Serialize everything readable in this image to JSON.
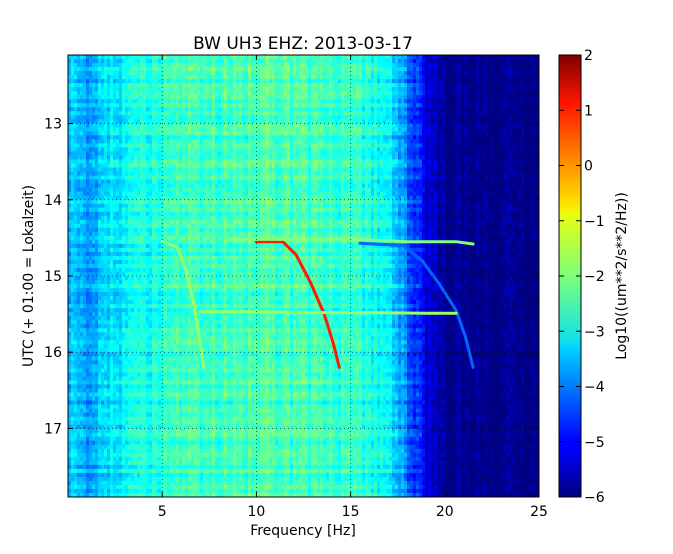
{
  "chart_data": {
    "type": "heatmap",
    "title": "BW UH3 EHZ: 2013-03-17",
    "xlabel": "Frequency [Hz]",
    "ylabel": "UTC (+ 01:00 = Lokalzeit)",
    "xlim": [
      0,
      25
    ],
    "ylim": [
      12.1,
      17.9
    ],
    "x_ticks": [
      5,
      10,
      15,
      20,
      25
    ],
    "y_ticks": [
      13,
      14,
      15,
      16,
      17
    ],
    "grid": true,
    "colormap": "jet",
    "colorbar": {
      "label": "Log10((um**2/s**2/Hz))",
      "min": -6,
      "max": 2,
      "ticks": [
        2,
        1,
        0,
        -1,
        -2,
        -3,
        -4,
        -5,
        -6
      ]
    },
    "background_level": {
      "frequency_hz": [
        0,
        1,
        2,
        5,
        10,
        15,
        17,
        18,
        19,
        20,
        25
      ],
      "log10_psd": [
        -3.4,
        -3.9,
        -3.3,
        -2.7,
        -2.4,
        -2.6,
        -3.0,
        -4.1,
        -5.3,
        -5.9,
        -6.0
      ]
    },
    "series": [
      {
        "frequency_hz": [
          5.0,
          5.8,
          6.3,
          6.7,
          7.0,
          7.2
        ],
        "utc_hour": [
          14.55,
          14.62,
          14.95,
          15.4,
          15.85,
          16.2
        ],
        "log10_psd": -1.8
      },
      {
        "frequency_hz": [
          10.0,
          11.4,
          12.1,
          12.9,
          13.6,
          14.1,
          14.4
        ],
        "utc_hour": [
          14.55,
          14.55,
          14.72,
          15.1,
          15.5,
          15.9,
          16.2
        ],
        "log10_psd": 0.8
      },
      {
        "frequency_hz": [
          15.5,
          17.8,
          18.8,
          19.7,
          20.6,
          21.1,
          21.5
        ],
        "utc_hour": [
          14.57,
          14.6,
          14.8,
          15.1,
          15.45,
          15.8,
          16.2
        ],
        "log10_psd": -4.2
      },
      {
        "frequency_hz": [
          8.5,
          12.0,
          15.0,
          18.0,
          20.6,
          21.5
        ],
        "utc_hour": [
          14.52,
          14.52,
          14.52,
          14.55,
          14.55,
          14.58
        ],
        "log10_psd": -2.0
      },
      {
        "frequency_hz": [
          7.0,
          10.0,
          13.0,
          16.0,
          19.0,
          20.6
        ],
        "utc_hour": [
          15.47,
          15.47,
          15.48,
          15.48,
          15.49,
          15.49
        ],
        "log10_psd": -1.8
      }
    ]
  }
}
